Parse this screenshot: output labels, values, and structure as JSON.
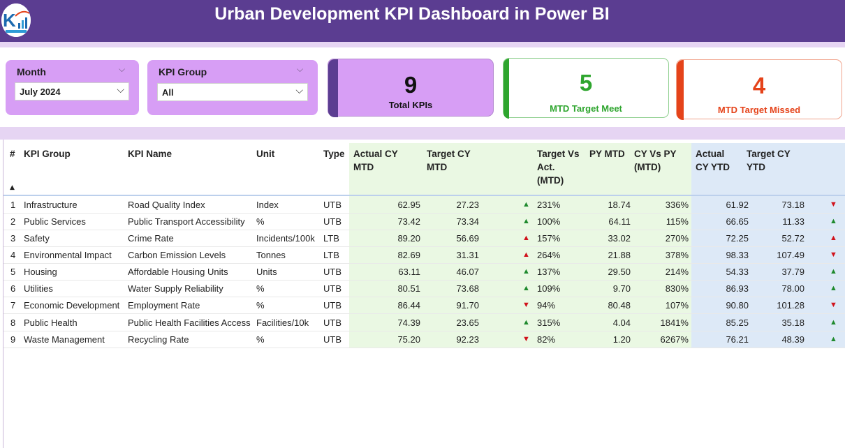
{
  "header": {
    "title": "Urban Development KPI Dashboard in Power BI"
  },
  "filters": {
    "month": {
      "label": "Month",
      "value": "July 2024"
    },
    "kpi_group": {
      "label": "KPI Group",
      "value": "All"
    }
  },
  "cards": {
    "total": {
      "value": "9",
      "label": "Total KPIs",
      "color": "#d79ef5",
      "accent": "#5b3d91"
    },
    "meet": {
      "value": "5",
      "label": "MTD Target Meet",
      "color": "#2ea52e"
    },
    "missed": {
      "value": "4",
      "label": "MTD Target Missed",
      "color": "#e5431a"
    }
  },
  "table": {
    "headers": {
      "num": "#",
      "group": "KPI Group",
      "name": "KPI Name",
      "unit": "Unit",
      "type": "Type",
      "actual_mtd": [
        "Actual CY",
        "MTD"
      ],
      "target_mtd": [
        "Target CY",
        "MTD"
      ],
      "tva": [
        "Target Vs",
        "Act.",
        "(MTD)"
      ],
      "py_mtd": "PY MTD",
      "cyvspy": [
        "CY Vs PY",
        "(MTD)"
      ],
      "actual_ytd": [
        "Actual",
        "CY YTD"
      ],
      "target_ytd": [
        "Target CY",
        "YTD"
      ]
    },
    "rows": [
      {
        "num": "1",
        "group": "Infrastructure",
        "name": "Road Quality Index",
        "unit": "Index",
        "type": "UTB",
        "actual_mtd": "62.95",
        "target_mtd": "27.23",
        "mtd_arrow": "▲",
        "tva": "231%",
        "py_mtd": "18.74",
        "cyvspy": "336%",
        "actual_ytd": "61.92",
        "target_ytd": "73.18",
        "ytd_arrow": "▼"
      },
      {
        "num": "2",
        "group": "Public Services",
        "name": "Public Transport Accessibility",
        "unit": "%",
        "type": "UTB",
        "actual_mtd": "73.42",
        "target_mtd": "73.34",
        "mtd_arrow": "▲",
        "tva": "100%",
        "py_mtd": "64.11",
        "cyvspy": "115%",
        "actual_ytd": "66.65",
        "target_ytd": "11.33",
        "ytd_arrow": "▲"
      },
      {
        "num": "3",
        "group": "Safety",
        "name": "Crime Rate",
        "unit": "Incidents/100k",
        "type": "LTB",
        "actual_mtd": "89.20",
        "target_mtd": "56.69",
        "mtd_arrow": "▲",
        "tva": "157%",
        "py_mtd": "33.02",
        "cyvspy": "270%",
        "actual_ytd": "72.25",
        "target_ytd": "52.72",
        "ytd_arrow": "▲"
      },
      {
        "num": "4",
        "group": "Environmental Impact",
        "name": "Carbon Emission Levels",
        "unit": "Tonnes",
        "type": "LTB",
        "actual_mtd": "82.69",
        "target_mtd": "31.31",
        "mtd_arrow": "▲",
        "tva": "264%",
        "py_mtd": "21.88",
        "cyvspy": "378%",
        "actual_ytd": "98.33",
        "target_ytd": "107.49",
        "ytd_arrow": "▼"
      },
      {
        "num": "5",
        "group": "Housing",
        "name": "Affordable Housing Units",
        "unit": "Units",
        "type": "UTB",
        "actual_mtd": "63.11",
        "target_mtd": "46.07",
        "mtd_arrow": "▲",
        "tva": "137%",
        "py_mtd": "29.50",
        "cyvspy": "214%",
        "actual_ytd": "54.33",
        "target_ytd": "37.79",
        "ytd_arrow": "▲"
      },
      {
        "num": "6",
        "group": "Utilities",
        "name": "Water Supply Reliability",
        "unit": "%",
        "type": "UTB",
        "actual_mtd": "80.51",
        "target_mtd": "73.68",
        "mtd_arrow": "▲",
        "tva": "109%",
        "py_mtd": "9.70",
        "cyvspy": "830%",
        "actual_ytd": "86.93",
        "target_ytd": "78.00",
        "ytd_arrow": "▲"
      },
      {
        "num": "7",
        "group": "Economic Development",
        "name": "Employment Rate",
        "unit": "%",
        "type": "UTB",
        "actual_mtd": "86.44",
        "target_mtd": "91.70",
        "mtd_arrow": "▼",
        "tva": "94%",
        "py_mtd": "80.48",
        "cyvspy": "107%",
        "actual_ytd": "90.80",
        "target_ytd": "101.28",
        "ytd_arrow": "▼"
      },
      {
        "num": "8",
        "group": "Public Health",
        "name": "Public Health Facilities Access",
        "unit": "Facilities/10k",
        "type": "UTB",
        "actual_mtd": "74.39",
        "target_mtd": "23.65",
        "mtd_arrow": "▲",
        "tva": "315%",
        "py_mtd": "4.04",
        "cyvspy": "1841%",
        "actual_ytd": "85.25",
        "target_ytd": "35.18",
        "ytd_arrow": "▲"
      },
      {
        "num": "9",
        "group": "Waste Management",
        "name": "Recycling Rate",
        "unit": "%",
        "type": "UTB",
        "actual_mtd": "75.20",
        "target_mtd": "92.23",
        "mtd_arrow": "▼",
        "tva": "82%",
        "py_mtd": "1.20",
        "cyvspy": "6267%",
        "actual_ytd": "76.21",
        "target_ytd": "48.39",
        "ytd_arrow": "▲"
      }
    ]
  }
}
